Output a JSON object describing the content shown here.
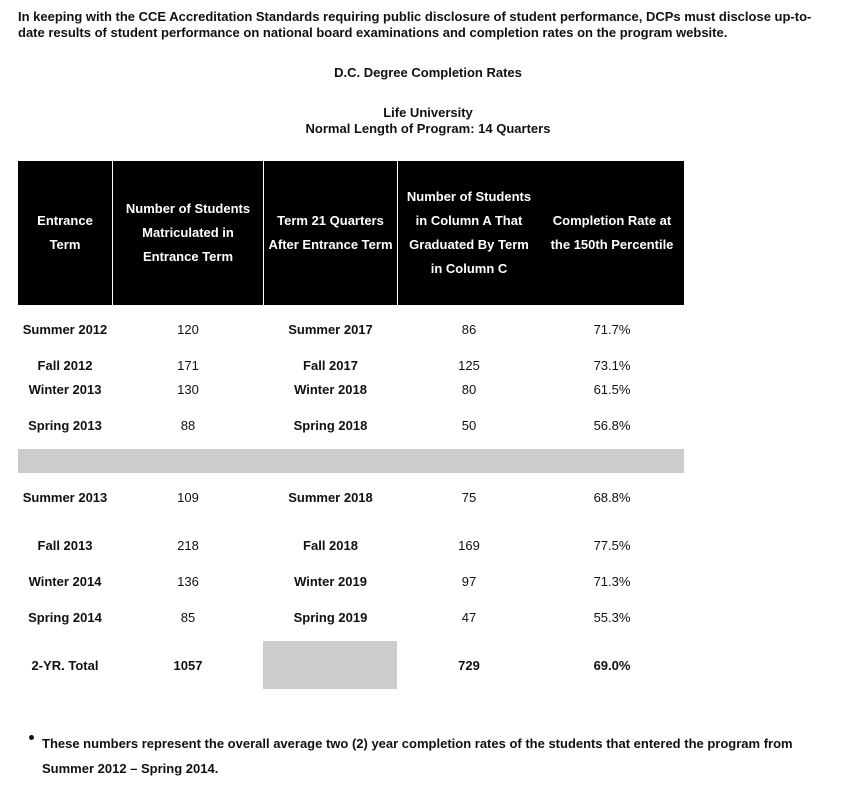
{
  "intro": "In keeping with the CCE Accreditation Standards requiring public disclosure of student performance, DCPs must disclose up-to-date results of student performance on national board examinations and completion rates on the program website.",
  "title": "D.C. Degree Completion Rates",
  "university": "Life University",
  "program_length": "Normal Length of Program: 14 Quarters",
  "table": {
    "headers": [
      "Entrance Term",
      "Number of Students Matriculated in Entrance Term",
      "Term 21 Quarters After Entrance Term",
      "Number of Students in Column A That Graduated By Term in Column C",
      "Completion Rate at the 150th Percentile"
    ],
    "rows": [
      [
        "Summer 2012",
        "120",
        "Summer 2017",
        "86",
        "71.7%"
      ],
      [
        "Fall 2012",
        "171",
        "Fall 2017",
        "125",
        "73.1%"
      ],
      [
        "Winter 2013",
        "130",
        "Winter 2018",
        "80",
        "61.5%"
      ],
      [
        "Spring 2013",
        "88",
        "Spring 2018",
        "50",
        "56.8%"
      ],
      [
        "Summer 2013",
        "109",
        "Summer 2018",
        "75",
        "68.8%"
      ],
      [
        "Fall 2013",
        "218",
        "Fall 2018",
        "169",
        "77.5%"
      ],
      [
        "Winter 2014",
        "136",
        "Winter 2019",
        "97",
        "71.3%"
      ],
      [
        "Spring 2014",
        "85",
        "Spring 2019",
        "47",
        "55.3%"
      ]
    ],
    "total": {
      "label": "2-YR. Total",
      "matriculated": "1057",
      "graduated": "729",
      "rate": "69.0%"
    }
  },
  "notes": [
    "These numbers represent the overall average two (2) year completion rates of the students that entered the program from Summer 2012 – Spring 2014."
  ]
}
